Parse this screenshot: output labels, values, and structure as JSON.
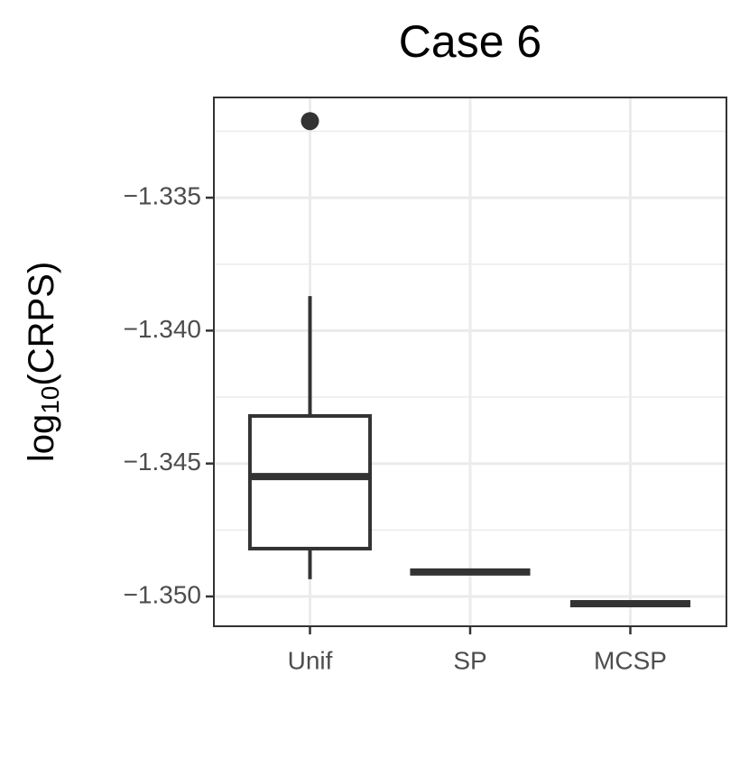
{
  "chart_data": {
    "type": "box",
    "title": "Case 6",
    "y_label": {
      "base": "log",
      "subscript": "10",
      "rest": "(CRPS)"
    },
    "categories": [
      "Unif",
      "SP",
      "MCSP"
    ],
    "boxes": [
      {
        "whisker_low": -1.34935,
        "q1": -1.3482,
        "median": -1.34549,
        "q3": -1.34321,
        "whisker_high": -1.3387,
        "outliers": [
          -1.33212
        ]
      },
      {
        "whisker_low": -1.34908,
        "q1": -1.34908,
        "median": -1.34908,
        "q3": -1.34908,
        "whisker_high": -1.34908,
        "outliers": []
      },
      {
        "whisker_low": -1.35027,
        "q1": -1.35027,
        "median": -1.35027,
        "q3": -1.35027,
        "whisker_high": -1.35027,
        "outliers": []
      }
    ],
    "color": "#333333",
    "ylim": [
      -1.35112,
      -1.33123
    ],
    "yticks": [
      {
        "value": -1.335,
        "label": "−1.335"
      },
      {
        "value": -1.34,
        "label": "−1.340"
      },
      {
        "value": -1.345,
        "label": "−1.345"
      },
      {
        "value": -1.35,
        "label": "−1.350"
      }
    ],
    "yminor": [
      -1.3325,
      -1.3375,
      -1.3425,
      -1.3475
    ],
    "grid": true
  }
}
